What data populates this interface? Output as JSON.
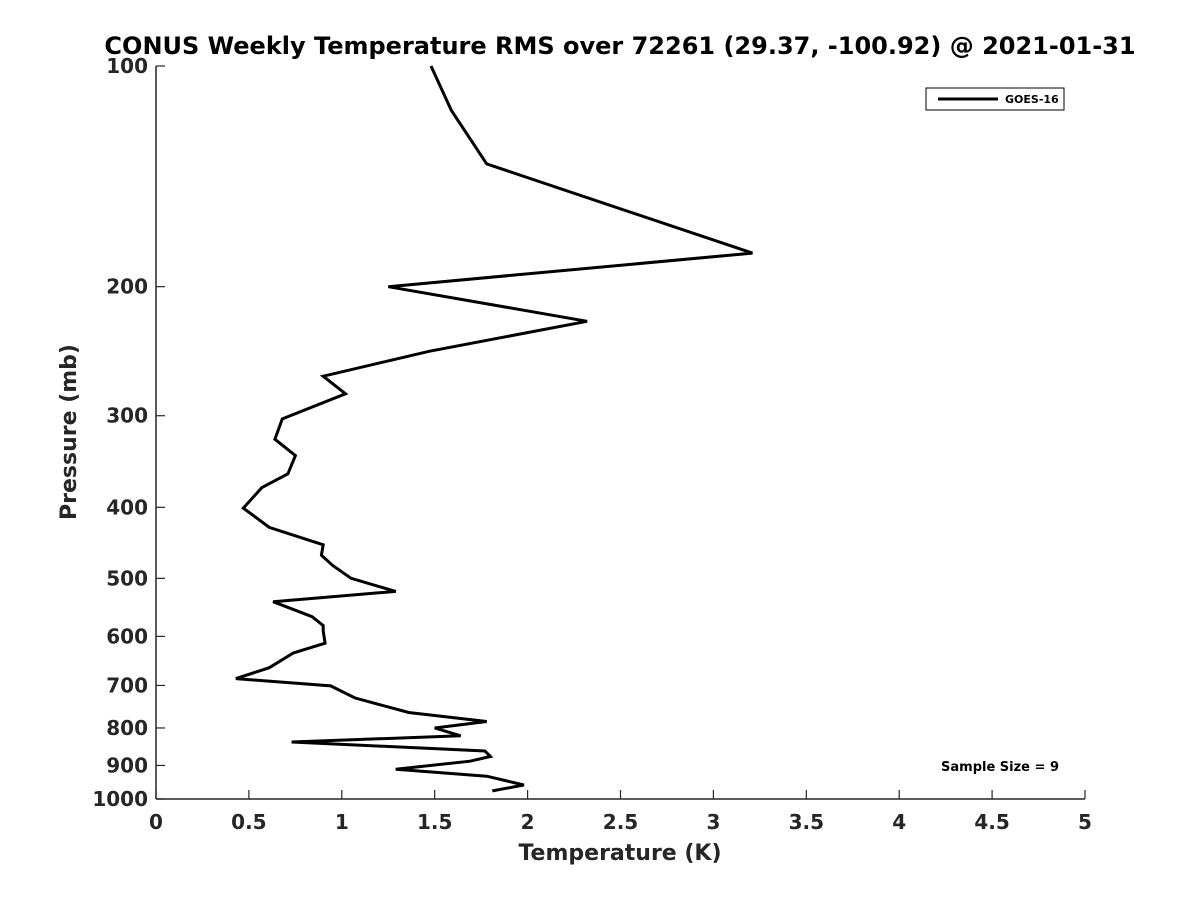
{
  "chart_data": {
    "type": "line",
    "title": "CONUS Weekly Temperature RMS over 72261 (29.37, -100.92) @ 2021-01-31",
    "xlabel": "Temperature (K)",
    "ylabel": "Pressure (mb)",
    "xlim": [
      0,
      5
    ],
    "ylim": [
      100,
      1000
    ],
    "y_scale": "log",
    "y_reversed": true,
    "x_ticks": [
      "0",
      "0.5",
      "1",
      "1.5",
      "2",
      "2.5",
      "3",
      "3.5",
      "4",
      "4.5",
      "5"
    ],
    "y_ticks": [
      "100",
      "200",
      "300",
      "400",
      "500",
      "600",
      "700",
      "800",
      "900",
      "1000"
    ],
    "grid": false,
    "legend_position": "top-right",
    "annotation": "Sample Size = 9",
    "series": [
      {
        "name": "GOES-16",
        "color": "#000000",
        "x": [
          1.48,
          1.59,
          1.78,
          3.21,
          1.25,
          2.32,
          1.47,
          0.9,
          1.02,
          0.68,
          0.64,
          0.75,
          0.71,
          0.57,
          0.47,
          0.61,
          0.9,
          0.89,
          0.95,
          1.05,
          1.29,
          0.63,
          0.84,
          0.9,
          0.9,
          0.91,
          0.74,
          0.61,
          0.43,
          0.94,
          1.07,
          1.36,
          1.78,
          1.5,
          1.64,
          0.73,
          1.77,
          1.8,
          1.69,
          1.29,
          1.78,
          1.98,
          1.81
        ],
        "y": [
          100,
          115,
          136,
          180,
          200,
          223,
          245,
          265,
          280,
          303,
          323,
          340,
          360,
          376,
          401,
          426,
          450,
          465,
          480,
          500,
          521,
          538,
          564,
          580,
          590,
          613,
          632,
          662,
          685,
          701,
          728,
          762,
          784,
          800,
          820,
          836,
          860,
          875,
          888,
          911,
          931,
          957,
          975
        ]
      }
    ]
  }
}
